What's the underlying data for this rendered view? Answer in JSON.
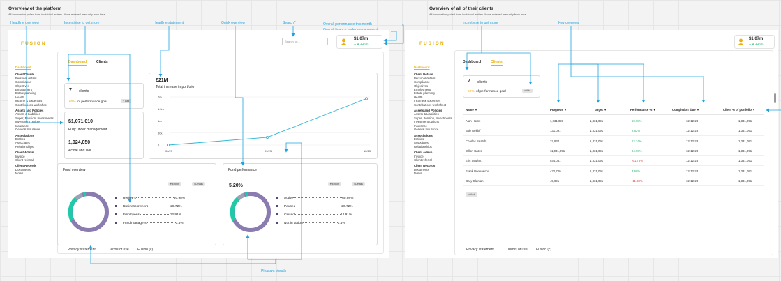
{
  "left": {
    "header_title": "Overview of the platform",
    "header_sub": "All information pulled from individual entries. None entered manually from here",
    "notes": {
      "headline_overview": "Headline overview",
      "incentivise": "Incentivise to get more",
      "headline_statement": "Headline statement",
      "quick_overview": "Quick overview",
      "search": "Search?",
      "overall_perf": "Overall performance this month",
      "overall_finance": "Overall finance under management",
      "pleasant": "Pleasant visuals"
    },
    "logo": "FUSION",
    "search_placeholder": "Search for...",
    "perf": {
      "amount": "$1.07m",
      "change": "+ 4.44%"
    },
    "tabs": {
      "dashboard": "Dashboard",
      "clients": "Clients"
    },
    "clients_card": {
      "count": "7",
      "label": "clients",
      "goal_pct": "60%",
      "goal_label": "of performance goal",
      "add": "+ Add"
    },
    "money_card": {
      "amount1": "$1,071,010",
      "label1": "Fully under management",
      "amount2": "1,024,050",
      "label2": "Active and live"
    },
    "chart_card": {
      "headline": "£21M",
      "subtitle": "Total increase in portfolio"
    },
    "fund_overview": {
      "title": "Fund overview",
      "export": "▾ Export",
      "details": "/ Details",
      "legend": [
        {
          "label": "Retiree's",
          "value": "60.98%"
        },
        {
          "label": "Business owners",
          "value": "20.72%"
        },
        {
          "label": "Employees",
          "value": "12.91%"
        },
        {
          "label": "Fund managers",
          "value": "3.4%"
        }
      ]
    },
    "fund_perf": {
      "title": "Fund performance",
      "export": "▾ Export",
      "details": "/ Details",
      "percent": "5.20%",
      "legend": [
        {
          "label": "Active",
          "value": "60.98%"
        },
        {
          "label": "Paused",
          "value": "20.72%"
        },
        {
          "label": "Closed",
          "value": "12.91%"
        },
        {
          "label": "Not in action",
          "value": "1.4%"
        }
      ]
    },
    "footer": {
      "privacy": "Privacy statement",
      "terms": "Terms of use",
      "brand": "Fusion (c)"
    }
  },
  "right": {
    "header_title": "Overview of all of their clients",
    "header_sub": "All information pulled from individual entries. None entered manually from here",
    "notes": {
      "incentivise": "Incentivise to get more",
      "key_overview": "Key overview"
    },
    "logo": "FUSION",
    "perf": {
      "amount": "$1.07m",
      "change": "+ 4.44%"
    },
    "tabs": {
      "dashboard": "Dashboard",
      "clients": "Clients"
    },
    "clients_card": {
      "count": "7",
      "label": "clients",
      "goal_pct": "60%",
      "goal_label": "of performance goal",
      "add": "+ Add"
    },
    "table": {
      "headers": [
        "Name",
        "Progress",
        "Target",
        "Performance %",
        "Completion date",
        "Client % of portfolio"
      ],
      "rows": [
        [
          "Alan Horne",
          "1,031,091",
          "1,331,091",
          "60.98%",
          "12-12-23",
          "1,331,091"
        ],
        [
          "Bob Geldof",
          "131,091",
          "1,331,091",
          "2.62%",
          "12-12-23",
          "1,331,091"
        ],
        [
          "Charles Saatchi",
          "32,934",
          "1,331,091",
          "12.34%",
          "12-12-23",
          "1,331,091"
        ],
        [
          "Dillon Gates",
          "11,031,091",
          "1,331,091",
          "94.98%",
          "12-12-23",
          "1,331,091"
        ],
        [
          "Eric Seufert",
          "934,051",
          "1,331,091",
          "-61.76%",
          "12-12-23",
          "1,331,091"
        ],
        [
          "Frank Underwood",
          "432,720",
          "1,331,091",
          "3.68%",
          "12-12-23",
          "1,331,091"
        ],
        [
          "Gary Oldman",
          "45,091",
          "1,331,091",
          "-11.38%",
          "12-12-23",
          "1,331,091"
        ]
      ],
      "add": "+ Add"
    },
    "footer": {
      "privacy": "Privacy statement",
      "terms": "Terms of use",
      "brand": "Fusion (c)"
    }
  },
  "sidebar": {
    "dashboard": "Dashboard",
    "sections": [
      {
        "title": "Client Details",
        "items": [
          "Personal details",
          "Compliance",
          "Objectives",
          "Employment",
          "Estate planning",
          "Health",
          "Income & Expenses",
          "Contributions worksheet"
        ]
      },
      {
        "title": "Assets and Policies",
        "items": [
          "Assets & Liabilities",
          "Super, Pension, Investments",
          "Investment options",
          "Insurance",
          "General Insurance"
        ]
      },
      {
        "title": "Associations",
        "items": [
          "Entities",
          "Associates",
          "Relationships"
        ]
      },
      {
        "title": "Client Admin",
        "items": [
          "Invoice",
          "Client referral"
        ]
      },
      {
        "title": "Client Records",
        "items": [
          "Documents",
          "Notes"
        ]
      }
    ]
  },
  "colors": {
    "accent": "#e9b212",
    "annotation": "#1fa3e0",
    "positive": "#2bb673",
    "negative": "#e04848",
    "donut_purple": "#8a7bb0",
    "donut_teal": "#20c9a8",
    "donut_grey": "#9aa3b5"
  },
  "chart_data": {
    "type": "line",
    "x": [
      "06/23",
      "09/23",
      "12/23"
    ],
    "series": [
      {
        "values": [
          0,
          32,
          193
        ]
      }
    ],
    "yticks": [
      "0",
      "50k",
      "1m",
      "1.5m",
      "2m"
    ],
    "ylim": [
      0,
      200
    ]
  }
}
